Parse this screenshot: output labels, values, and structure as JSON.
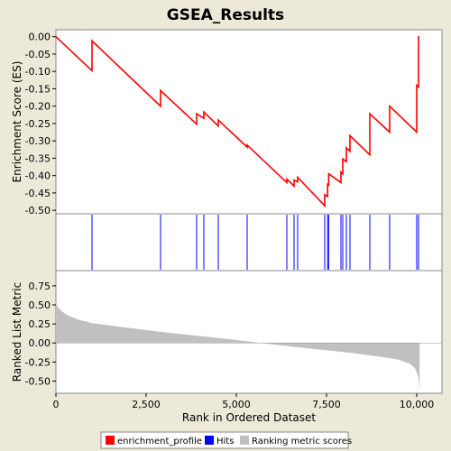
{
  "chart_data": {
    "type": "line",
    "title": "GSEA_Results",
    "xlabel": "Rank in Ordered Dataset",
    "x_ticks": [
      {
        "value": 0,
        "label": "0"
      },
      {
        "value": 2500,
        "label": "2,500"
      },
      {
        "value": 5000,
        "label": "5,000"
      },
      {
        "value": 7500,
        "label": "7,500"
      },
      {
        "value": 10000,
        "label": "10,000"
      }
    ],
    "xlim": [
      0,
      10700
    ],
    "es_panel": {
      "ylabel": "Enrichment Score (ES)",
      "ylim": [
        -0.51,
        0.02
      ],
      "y_ticks": [
        {
          "value": 0.0,
          "label": "0.00"
        },
        {
          "value": -0.05,
          "label": "-0.05"
        },
        {
          "value": -0.1,
          "label": "-0.10"
        },
        {
          "value": -0.15,
          "label": "-0.15"
        },
        {
          "value": -0.2,
          "label": "-0.20"
        },
        {
          "value": -0.25,
          "label": "-0.25"
        },
        {
          "value": -0.3,
          "label": "-0.30"
        },
        {
          "value": -0.35,
          "label": "-0.35"
        },
        {
          "value": -0.4,
          "label": "-0.40"
        },
        {
          "value": -0.45,
          "label": "-0.45"
        },
        {
          "value": -0.5,
          "label": "-0.50"
        }
      ],
      "series": [
        {
          "name": "enrichment_profile",
          "color": "#ff0000",
          "points": [
            [
              0,
              0.0
            ],
            [
              1000,
              -0.098
            ],
            [
              1000,
              -0.012
            ],
            [
              2900,
              -0.2
            ],
            [
              2900,
              -0.155
            ],
            [
              3900,
              -0.252
            ],
            [
              3900,
              -0.222
            ],
            [
              4100,
              -0.235
            ],
            [
              4100,
              -0.217
            ],
            [
              4500,
              -0.257
            ],
            [
              4500,
              -0.24
            ],
            [
              5300,
              -0.318
            ],
            [
              5300,
              -0.312
            ],
            [
              6400,
              -0.42
            ],
            [
              6400,
              -0.41
            ],
            [
              6600,
              -0.43
            ],
            [
              6600,
              -0.413
            ],
            [
              6700,
              -0.418
            ],
            [
              6700,
              -0.405
            ],
            [
              7450,
              -0.487
            ],
            [
              7450,
              -0.455
            ],
            [
              7530,
              -0.46
            ],
            [
              7530,
              -0.425
            ],
            [
              7560,
              -0.427
            ],
            [
              7560,
              -0.395
            ],
            [
              7900,
              -0.42
            ],
            [
              7900,
              -0.39
            ],
            [
              7950,
              -0.395
            ],
            [
              7950,
              -0.352
            ],
            [
              8050,
              -0.36
            ],
            [
              8050,
              -0.32
            ],
            [
              8150,
              -0.33
            ],
            [
              8150,
              -0.285
            ],
            [
              8700,
              -0.34
            ],
            [
              8700,
              -0.222
            ],
            [
              9250,
              -0.275
            ],
            [
              9250,
              -0.2
            ],
            [
              10000,
              -0.275
            ],
            [
              10000,
              -0.14
            ],
            [
              10050,
              -0.145
            ],
            [
              10050,
              0.002
            ]
          ]
        }
      ]
    },
    "hits": {
      "name": "Hits",
      "color": "#0000ff",
      "positions": [
        1000,
        2900,
        3900,
        4100,
        4500,
        5300,
        6400,
        6600,
        6700,
        7450,
        7530,
        7560,
        7900,
        7950,
        8050,
        8150,
        8700,
        9250,
        10000,
        10050
      ]
    },
    "rank_panel": {
      "ylabel": "Ranked List Metric",
      "name": "Ranking metric scores",
      "color": "#c0c0c0",
      "ylim": [
        -0.66,
        0.95
      ],
      "y_ticks": [
        {
          "value": 0.75,
          "label": "0.75"
        },
        {
          "value": 0.5,
          "label": "0.50"
        },
        {
          "value": 0.25,
          "label": "0.25"
        },
        {
          "value": 0.0,
          "label": "0.00"
        },
        {
          "value": -0.25,
          "label": "-0.25"
        },
        {
          "value": -0.5,
          "label": "-0.50"
        }
      ],
      "profile": [
        [
          0,
          0.53
        ],
        [
          50,
          0.47
        ],
        [
          150,
          0.42
        ],
        [
          300,
          0.37
        ],
        [
          600,
          0.31
        ],
        [
          1000,
          0.26
        ],
        [
          2000,
          0.2
        ],
        [
          3000,
          0.14
        ],
        [
          4000,
          0.09
        ],
        [
          5000,
          0.04
        ],
        [
          6000,
          -0.02
        ],
        [
          7000,
          -0.07
        ],
        [
          8000,
          -0.12
        ],
        [
          9000,
          -0.18
        ],
        [
          9500,
          -0.22
        ],
        [
          9800,
          -0.27
        ],
        [
          9950,
          -0.33
        ],
        [
          10030,
          -0.42
        ],
        [
          10060,
          -0.5
        ],
        [
          10080,
          -0.63
        ]
      ]
    },
    "legend": {
      "placement": "bottom",
      "entries": [
        {
          "label": "enrichment_profile",
          "color": "#ff0000"
        },
        {
          "label": "Hits",
          "color": "#0000ff"
        },
        {
          "label": "Ranking metric scores",
          "color": "#c0c0c0"
        }
      ]
    }
  }
}
